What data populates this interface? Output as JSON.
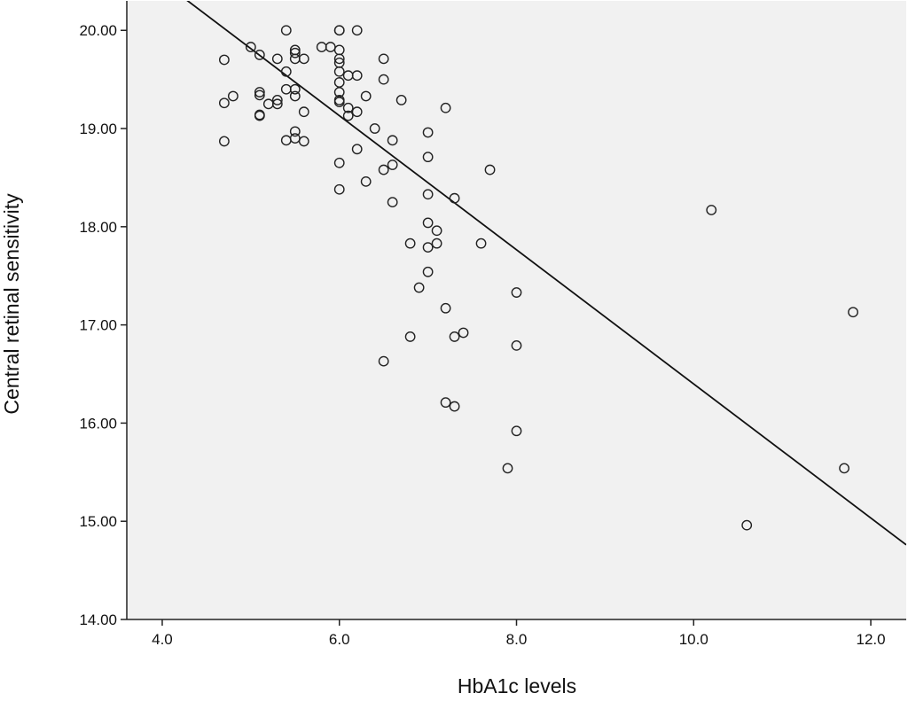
{
  "chart_data": {
    "type": "scatter",
    "title": "",
    "xlabel": "HbA1c levels",
    "ylabel": "Central retinal sensitivity",
    "xlim": [
      3.6,
      12.4
    ],
    "ylim": [
      14.0,
      20.3
    ],
    "x_ticks": [
      4.0,
      6.0,
      8.0,
      10.0,
      12.0
    ],
    "x_tick_labels": [
      "4.0",
      "6.0",
      "8.0",
      "10.0",
      "12.0"
    ],
    "y_ticks": [
      14.0,
      15.0,
      16.0,
      17.0,
      18.0,
      19.0,
      20.0
    ],
    "y_tick_labels": [
      "14.00",
      "15.00",
      "16.00",
      "17.00",
      "18.00",
      "19.00",
      "20.00"
    ],
    "grid": false,
    "legend": "none",
    "colors": {
      "plot_background": "#f1f1f1",
      "marker_stroke": "#222222",
      "fit_line": "#111111",
      "axis": "#222222"
    },
    "fit_line": {
      "points": [
        [
          3.6,
          20.77
        ],
        [
          12.4,
          14.76
        ]
      ]
    },
    "points": [
      [
        4.7,
        19.7
      ],
      [
        4.7,
        19.26
      ],
      [
        4.7,
        18.87
      ],
      [
        4.8,
        19.33
      ],
      [
        5.0,
        19.83
      ],
      [
        5.1,
        19.75
      ],
      [
        5.1,
        19.37
      ],
      [
        5.1,
        19.34
      ],
      [
        5.1,
        19.14
      ],
      [
        5.1,
        19.13
      ],
      [
        5.2,
        19.25
      ],
      [
        5.3,
        19.71
      ],
      [
        5.3,
        19.29
      ],
      [
        5.3,
        19.25
      ],
      [
        5.4,
        20.0
      ],
      [
        5.4,
        19.58
      ],
      [
        5.4,
        19.4
      ],
      [
        5.4,
        18.88
      ],
      [
        5.5,
        19.8
      ],
      [
        5.5,
        19.77
      ],
      [
        5.5,
        19.71
      ],
      [
        5.5,
        19.4
      ],
      [
        5.5,
        19.33
      ],
      [
        5.5,
        18.97
      ],
      [
        5.5,
        18.9
      ],
      [
        5.6,
        19.71
      ],
      [
        5.6,
        19.17
      ],
      [
        5.6,
        18.87
      ],
      [
        5.8,
        19.83
      ],
      [
        5.9,
        19.83
      ],
      [
        6.0,
        20.0
      ],
      [
        6.0,
        20.0
      ],
      [
        6.0,
        19.8
      ],
      [
        6.0,
        19.71
      ],
      [
        6.0,
        19.67
      ],
      [
        6.0,
        19.58
      ],
      [
        6.0,
        19.47
      ],
      [
        6.0,
        19.37
      ],
      [
        6.0,
        19.29
      ],
      [
        6.0,
        19.27
      ],
      [
        6.0,
        18.65
      ],
      [
        6.0,
        18.38
      ],
      [
        6.1,
        19.54
      ],
      [
        6.1,
        19.21
      ],
      [
        6.1,
        19.13
      ],
      [
        6.2,
        20.0
      ],
      [
        6.2,
        19.54
      ],
      [
        6.2,
        19.17
      ],
      [
        6.2,
        18.79
      ],
      [
        6.3,
        19.33
      ],
      [
        6.3,
        18.46
      ],
      [
        6.4,
        19.0
      ],
      [
        6.5,
        19.71
      ],
      [
        6.5,
        19.5
      ],
      [
        6.5,
        18.58
      ],
      [
        6.5,
        16.63
      ],
      [
        6.6,
        18.88
      ],
      [
        6.6,
        18.63
      ],
      [
        6.6,
        18.25
      ],
      [
        6.7,
        19.29
      ],
      [
        6.8,
        17.83
      ],
      [
        6.8,
        16.88
      ],
      [
        6.9,
        17.38
      ],
      [
        7.0,
        18.96
      ],
      [
        7.0,
        18.71
      ],
      [
        7.0,
        18.33
      ],
      [
        7.0,
        18.04
      ],
      [
        7.0,
        17.79
      ],
      [
        7.0,
        17.54
      ],
      [
        7.1,
        17.96
      ],
      [
        7.1,
        17.83
      ],
      [
        7.2,
        19.21
      ],
      [
        7.2,
        17.17
      ],
      [
        7.2,
        16.21
      ],
      [
        7.3,
        18.29
      ],
      [
        7.3,
        16.88
      ],
      [
        7.3,
        16.17
      ],
      [
        7.4,
        16.92
      ],
      [
        7.6,
        17.83
      ],
      [
        7.7,
        18.58
      ],
      [
        7.9,
        15.54
      ],
      [
        8.0,
        17.33
      ],
      [
        8.0,
        16.79
      ],
      [
        8.0,
        15.92
      ],
      [
        10.2,
        18.17
      ],
      [
        10.6,
        14.96
      ],
      [
        11.7,
        15.54
      ],
      [
        11.8,
        17.13
      ]
    ]
  }
}
